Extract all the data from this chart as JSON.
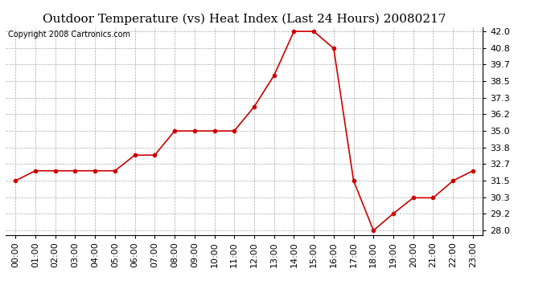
{
  "title": "Outdoor Temperature (vs) Heat Index (Last 24 Hours) 20080217",
  "copyright": "Copyright 2008 Cartronics.com",
  "x_labels": [
    "00:00",
    "01:00",
    "02:00",
    "03:00",
    "04:00",
    "05:00",
    "06:00",
    "07:00",
    "08:00",
    "09:00",
    "10:00",
    "11:00",
    "12:00",
    "13:00",
    "14:00",
    "15:00",
    "16:00",
    "17:00",
    "18:00",
    "19:00",
    "20:00",
    "21:00",
    "22:00",
    "23:00"
  ],
  "y_values": [
    31.5,
    32.2,
    32.2,
    32.2,
    32.2,
    32.2,
    33.3,
    33.3,
    35.0,
    35.0,
    35.0,
    35.0,
    36.7,
    38.9,
    42.0,
    42.0,
    40.8,
    31.5,
    28.0,
    29.2,
    30.3,
    30.3,
    31.5,
    32.2
  ],
  "line_color": "#cc0000",
  "marker": "o",
  "marker_size": 3,
  "background_color": "#ffffff",
  "grid_color": "#aaaaaa",
  "ylim": [
    27.7,
    42.3
  ],
  "yticks": [
    28.0,
    29.2,
    30.3,
    31.5,
    32.7,
    33.8,
    35.0,
    36.2,
    37.3,
    38.5,
    39.7,
    40.8,
    42.0
  ],
  "title_fontsize": 11,
  "copyright_fontsize": 7,
  "tick_fontsize": 8
}
